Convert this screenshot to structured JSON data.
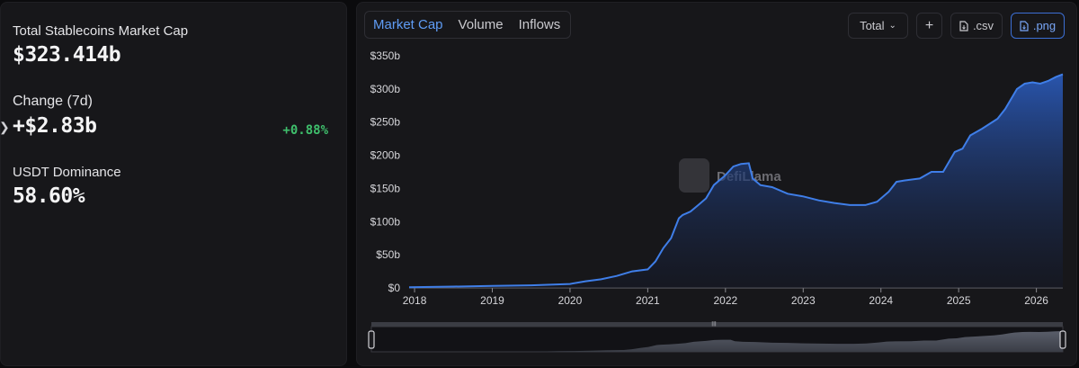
{
  "stats": {
    "market_cap": {
      "label": "Total Stablecoins Market Cap",
      "value": "$323.414b"
    },
    "change": {
      "label": "Change (7d)",
      "value": "+$2.83b",
      "percent": "+0.88%"
    },
    "dominance": {
      "label": "USDT Dominance",
      "value": "58.60%"
    }
  },
  "tabs": [
    {
      "label": "Market Cap",
      "active": true
    },
    {
      "label": "Volume",
      "active": false
    },
    {
      "label": "Inflows",
      "active": false
    }
  ],
  "toolbar": {
    "total_label": "Total",
    "add_label": "+",
    "csv_label": ".csv",
    "png_label": ".png"
  },
  "watermark": "DefiLlama",
  "colors": {
    "accent": "#3f7ee8",
    "positive": "#3fbf6c",
    "panel": "#17171a"
  },
  "chart_data": {
    "type": "area",
    "ylim": [
      0,
      350
    ],
    "yticks": [
      "$0",
      "$50b",
      "$100b",
      "$150b",
      "$200b",
      "$250b",
      "$300b",
      "$350b"
    ],
    "ytick_values": [
      0,
      50,
      100,
      150,
      200,
      250,
      300,
      350
    ],
    "xticks": [
      "2018",
      "2019",
      "2020",
      "2021",
      "2022",
      "2023",
      "2024",
      "2025",
      "2026"
    ],
    "xlim": [
      2017.93,
      2026.34
    ],
    "series": [
      {
        "x": [
          2017.93,
          2018.5,
          2019.0,
          2019.5,
          2020.0,
          2020.2,
          2020.4,
          2020.6,
          2020.8,
          2021.0,
          2021.1,
          2021.2,
          2021.3,
          2021.4,
          2021.45,
          2021.55,
          2021.65,
          2021.75,
          2021.85,
          2022.0,
          2022.1,
          2022.2,
          2022.3,
          2022.35,
          2022.45,
          2022.6,
          2022.8,
          2023.0,
          2023.2,
          2023.4,
          2023.6,
          2023.8,
          2023.95,
          2024.1,
          2024.2,
          2024.3,
          2024.5,
          2024.65,
          2024.8,
          2024.95,
          2025.05,
          2025.15,
          2025.3,
          2025.5,
          2025.6,
          2025.7,
          2025.75,
          2025.85,
          2025.95,
          2026.05,
          2026.15,
          2026.25,
          2026.34
        ],
        "y": [
          1,
          2,
          3,
          4,
          6,
          10,
          13,
          18,
          25,
          28,
          40,
          60,
          75,
          105,
          110,
          115,
          125,
          135,
          155,
          170,
          183,
          187,
          188,
          165,
          155,
          152,
          142,
          138,
          132,
          128,
          125,
          125,
          130,
          145,
          160,
          162,
          165,
          175,
          175,
          205,
          210,
          230,
          240,
          255,
          270,
          290,
          300,
          308,
          310,
          308,
          312,
          318,
          322
        ]
      }
    ]
  }
}
